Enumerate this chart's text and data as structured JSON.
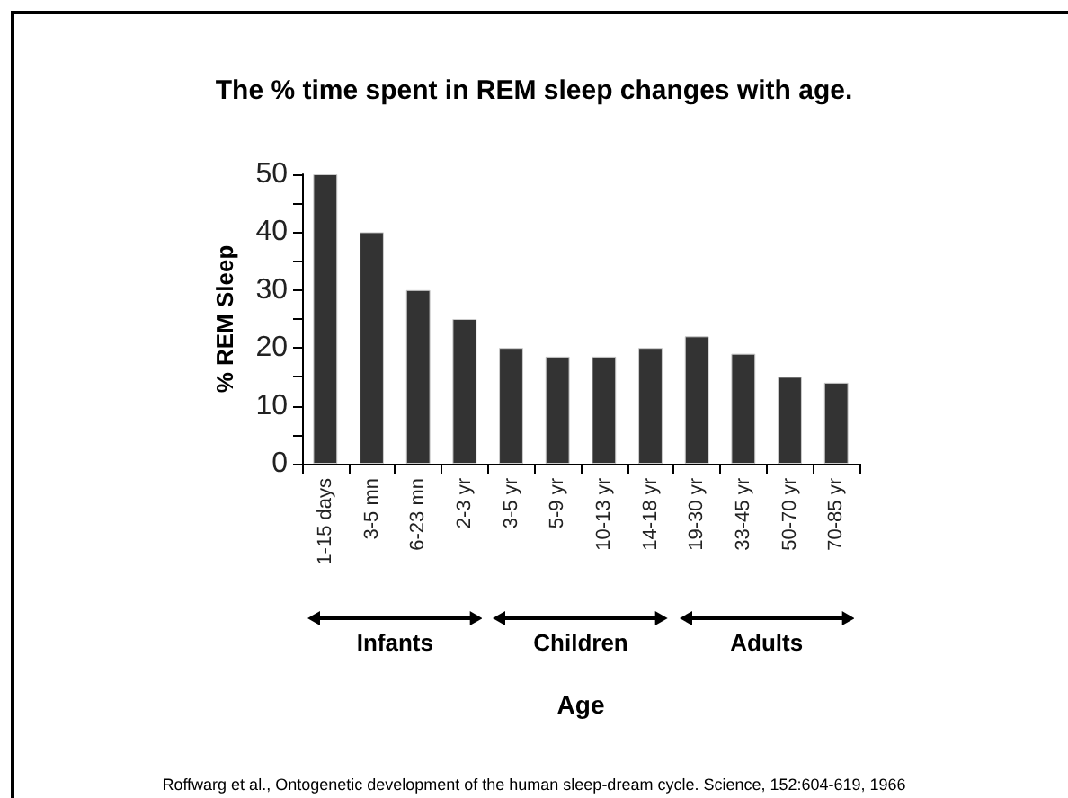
{
  "chart_data": {
    "type": "bar",
    "title": "The % time spent in REM sleep changes with age.",
    "categories": [
      "1-15 days",
      "3-5 mn",
      "6-23 mn",
      "2-3 yr",
      "3-5 yr",
      "5-9 yr",
      "10-13 yr",
      "14-18 yr",
      "19-30 yr",
      "33-45 yr",
      "50-70 yr",
      "70-85 yr"
    ],
    "values": [
      50,
      40,
      30,
      25,
      20,
      18.5,
      18.5,
      20,
      22,
      19,
      15,
      14
    ],
    "color": "#333333",
    "ylim": [
      0,
      50
    ],
    "yticks": [
      0,
      {
        "value": 5,
        "label": null
      },
      10,
      {
        "value": 15,
        "label": null
      },
      20,
      {
        "value": 25,
        "label": null
      },
      30,
      {
        "value": 35,
        "label": null
      },
      40,
      {
        "value": 45,
        "label": null
      },
      50
    ],
    "ylabel": "% REM Sleep",
    "xlabel": "Age",
    "annotations": [
      "Infants",
      "Children",
      "Adults",
      "Roffwarg et al., Ontogenetic development of the human sleep-dream cycle. Science, 152:604-619, 1966"
    ],
    "grid": false
  }
}
